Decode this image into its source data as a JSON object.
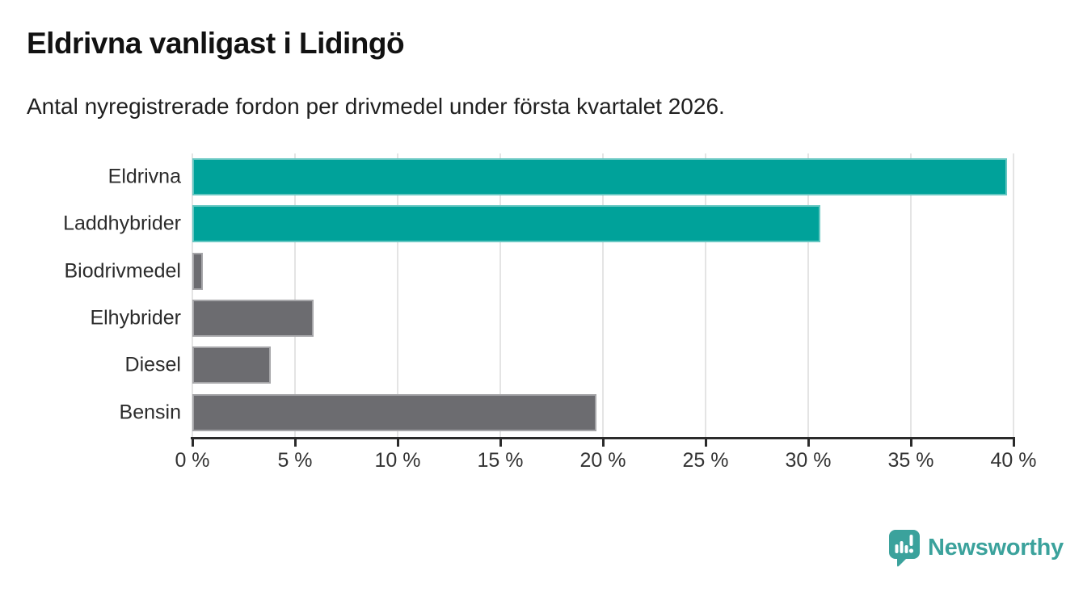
{
  "header": {
    "title": "Eldrivna vanligast i Lidingö",
    "subtitle": "Antal nyregistrerade fordon per drivmedel under första kvartalet 2026."
  },
  "chart_data": {
    "type": "bar",
    "orientation": "horizontal",
    "title": "Eldrivna vanligast i Lidingö",
    "subtitle": "Antal nyregistrerade fordon per drivmedel under första kvartalet 2026.",
    "categories": [
      "Eldrivna",
      "Laddhybrider",
      "Biodrivmedel",
      "Elhybrider",
      "Diesel",
      "Bensin"
    ],
    "values": [
      39.7,
      30.6,
      0.5,
      5.9,
      3.8,
      19.7
    ],
    "unit": "%",
    "xlim": [
      0,
      40
    ],
    "tick_values": [
      0,
      5,
      10,
      15,
      20,
      25,
      30,
      35,
      40
    ],
    "tick_labels": [
      "0 %",
      "5 %",
      "10 %",
      "15 %",
      "20 %",
      "25 %",
      "30 %",
      "35 %",
      "40 %"
    ],
    "bar_colors": [
      "#00a29a",
      "#00a29a",
      "#6c6c70",
      "#6c6c70",
      "#6c6c70",
      "#6c6c70"
    ],
    "grid": true,
    "legend": "none"
  },
  "colors": {
    "highlight_bar": "#00a29a",
    "default_bar": "#6c6c70",
    "axis": "#2b2b2b",
    "gridline": "#e4e4e4",
    "title_text": "#121212",
    "label_text": "#2b2b2b",
    "logo_teal": "#3ba29c"
  },
  "branding": {
    "logo_text": "Newsworthy",
    "logo_icon": "newsworthy-speech-bubble-chart-icon"
  }
}
